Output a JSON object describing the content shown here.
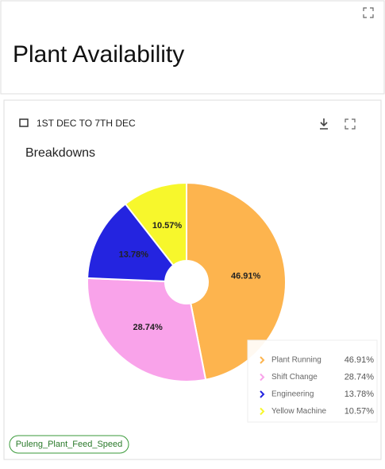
{
  "header": {
    "title": "Plant Availability"
  },
  "card": {
    "date_range": "1ST DEC TO 7TH DEC"
  },
  "chart": {
    "type": "pie",
    "title": "Breakdowns",
    "categories": [
      "Plant Running",
      "Shift Change",
      "Engineering",
      "Yellow Machine"
    ],
    "values": [
      46.91,
      28.74,
      13.78,
      10.57
    ],
    "value_labels": [
      "46.91%",
      "28.74%",
      "13.78%",
      "10.57%"
    ],
    "colors": [
      "#fdb44e",
      "#f9a3ea",
      "#2424e0",
      "#f7f72c"
    ]
  },
  "tag": "Puleng_Plant_Feed_Speed"
}
